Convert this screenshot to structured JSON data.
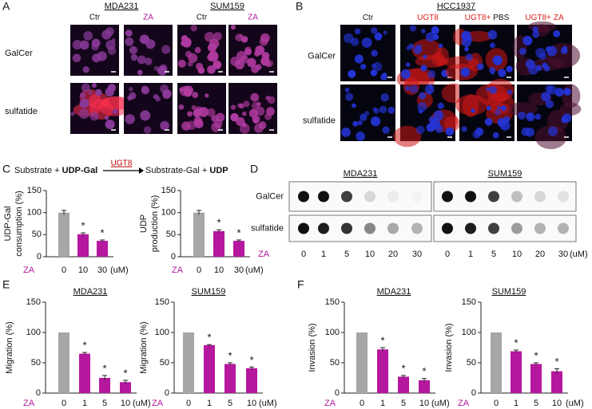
{
  "panels": {
    "A": {
      "letter": "A",
      "groups": [
        {
          "title": "MDA231",
          "columns": [
            "Ctr",
            "ZA"
          ]
        },
        {
          "title": "SUM159",
          "columns": [
            "Ctr",
            "ZA"
          ]
        }
      ],
      "rows": [
        "GalCer",
        "sulfatide"
      ]
    },
    "B": {
      "letter": "B",
      "title": "HCC1937",
      "columns": [
        [
          "Ctr"
        ],
        [
          "UGT8"
        ],
        [
          "UGT8+",
          "PBS"
        ],
        [
          "UGT8+",
          "ZA"
        ]
      ],
      "rows": [
        "GalCer",
        "sulfatide"
      ]
    },
    "C": {
      "letter": "C",
      "reaction": {
        "substrate": "Substrate + ",
        "donor": "UDP-Gal",
        "enzyme": "UGT8",
        "product": "Substrate-Gal + ",
        "byproduct": "UDP"
      }
    },
    "D": {
      "letter": "D",
      "groups": [
        {
          "title": "MDA231",
          "lanes": [
            "0",
            "1",
            "5",
            "10",
            "20",
            "30"
          ]
        },
        {
          "title": "SUM159",
          "lanes": [
            "0",
            "1",
            "5",
            "10",
            "20",
            "30"
          ]
        }
      ],
      "rows": [
        "GalCer",
        "sulfatide"
      ],
      "x_prefix": "ZA",
      "x_unit": "(uM)"
    },
    "E": {
      "letter": "E"
    },
    "F": {
      "letter": "F"
    }
  },
  "chart_data": [
    {
      "type": "bar",
      "ylabel": [
        "UDP-Gal",
        "consumption (%)"
      ],
      "x_prefix": "ZA",
      "x_unit": "(uM)",
      "x_prefix_color": "#b5179e",
      "categories": [
        "0",
        "10",
        "30"
      ],
      "values": [
        100,
        51,
        36
      ],
      "errors": [
        5,
        3,
        2
      ],
      "colors": [
        "#a6a6a6",
        "#b5179e",
        "#b5179e"
      ],
      "significance": [
        null,
        "*",
        "*"
      ],
      "ylim": [
        0,
        150
      ],
      "yticks": [
        0,
        50,
        100,
        150
      ]
    },
    {
      "type": "bar",
      "ylabel": [
        "UDP",
        "production (%)"
      ],
      "x_prefix": "ZA",
      "x_unit": "(uM)",
      "x_prefix_color": "#b5179e",
      "categories": [
        "0",
        "10",
        "30"
      ],
      "values": [
        100,
        58,
        36
      ],
      "errors": [
        5,
        3,
        2
      ],
      "colors": [
        "#a6a6a6",
        "#b5179e",
        "#b5179e"
      ],
      "significance": [
        null,
        "*",
        "*"
      ],
      "ylim": [
        0,
        150
      ],
      "yticks": [
        0,
        50,
        100,
        150
      ]
    },
    {
      "type": "bar",
      "title": "MDA231",
      "ylabel": [
        "Migration (%)"
      ],
      "x_prefix": "ZA",
      "x_unit": "(uM)",
      "x_prefix_color": "#b5179e",
      "categories": [
        "0",
        "1",
        "5",
        "10"
      ],
      "values": [
        100,
        65,
        25,
        18
      ],
      "errors": [
        0,
        2,
        4,
        3
      ],
      "colors": [
        "#a6a6a6",
        "#b5179e",
        "#b5179e",
        "#b5179e"
      ],
      "significance": [
        null,
        "*",
        "*",
        "*"
      ],
      "ylim": [
        0,
        150
      ],
      "yticks": [
        0,
        50,
        100,
        150
      ]
    },
    {
      "type": "bar",
      "title": "SUM159",
      "ylabel": [
        "Migration (%)"
      ],
      "x_prefix": "ZA",
      "x_unit": "(uM)",
      "x_prefix_color": "#b5179e",
      "categories": [
        "0",
        "1",
        "5",
        "10"
      ],
      "values": [
        100,
        79,
        48,
        41
      ],
      "errors": [
        0,
        1,
        2,
        2
      ],
      "colors": [
        "#a6a6a6",
        "#b5179e",
        "#b5179e",
        "#b5179e"
      ],
      "significance": [
        null,
        "*",
        "*",
        "*"
      ],
      "ylim": [
        0,
        150
      ],
      "yticks": [
        0,
        50,
        100,
        150
      ]
    },
    {
      "type": "bar",
      "title": "MDA231",
      "ylabel": [
        "Invasion (%)"
      ],
      "x_prefix": "ZA",
      "x_unit": "(uM)",
      "x_prefix_color": "#b5179e",
      "categories": [
        "0",
        "1",
        "5",
        "10"
      ],
      "values": [
        100,
        72,
        27,
        21
      ],
      "errors": [
        0,
        3,
        2,
        3
      ],
      "colors": [
        "#a6a6a6",
        "#b5179e",
        "#b5179e",
        "#b5179e"
      ],
      "significance": [
        null,
        "*",
        "*",
        "*"
      ],
      "ylim": [
        0,
        150
      ],
      "yticks": [
        0,
        50,
        100,
        150
      ]
    },
    {
      "type": "bar",
      "title": "SUM159",
      "ylabel": [
        "Invasion (%)"
      ],
      "x_prefix": "ZA",
      "x_unit": "(uM)",
      "x_prefix_color": "#b5179e",
      "categories": [
        "0",
        "1",
        "5",
        "10"
      ],
      "values": [
        100,
        69,
        48,
        36
      ],
      "errors": [
        0,
        2,
        2,
        4
      ],
      "colors": [
        "#a6a6a6",
        "#b5179e",
        "#b5179e",
        "#b5179e"
      ],
      "significance": [
        null,
        "*",
        "*",
        "*"
      ],
      "ylim": [
        0,
        150
      ],
      "yticks": [
        0,
        50,
        100,
        150
      ]
    }
  ]
}
